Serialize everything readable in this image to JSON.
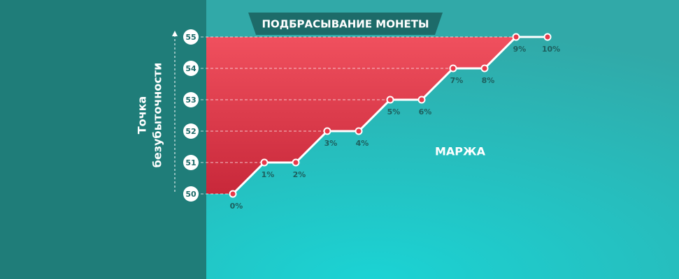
{
  "chart_data": {
    "type": "line",
    "title": "ПОДБРАСЫВАНИЕ МОНЕТЫ",
    "xlabel": "МАРЖА",
    "ylabel": [
      "Точка",
      "безубыточности"
    ],
    "categories": [
      "0%",
      "1%",
      "2%",
      "3%",
      "4%",
      "5%",
      "6%",
      "7%",
      "8%",
      "9%",
      "10%"
    ],
    "values": [
      50,
      51,
      51,
      52,
      52,
      53,
      53,
      54,
      54,
      55,
      55
    ],
    "color": "#ffffff",
    "area_color": "#e8394a",
    "ylim": [
      50,
      55
    ],
    "yticks": [
      50,
      51,
      52,
      53,
      54,
      55
    ],
    "grid": true
  }
}
